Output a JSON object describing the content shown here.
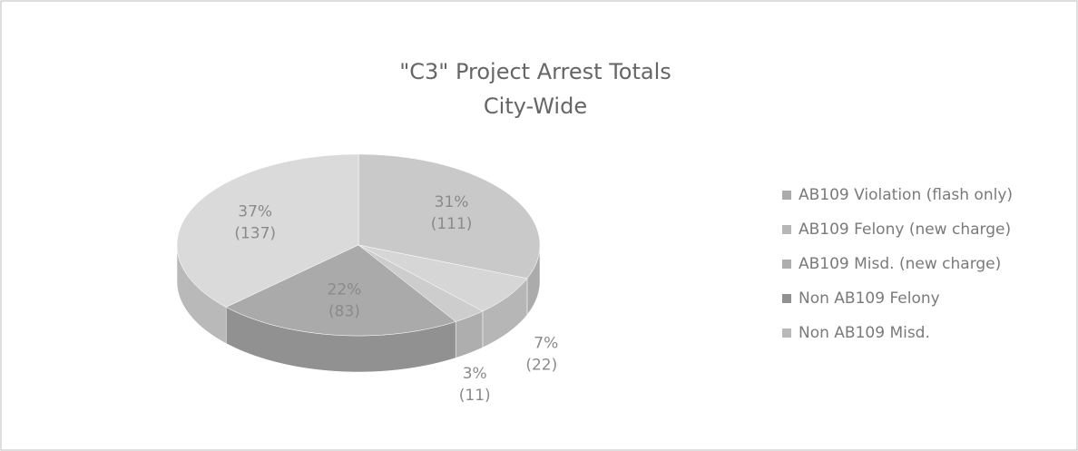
{
  "chart_data": {
    "type": "pie3d",
    "title": "\"C3\" Project Arrest Totals",
    "subtitle": "City-Wide",
    "categories": [
      "AB109 Violation (flash only)",
      "AB109 Felony (new charge)",
      "AB109 Misd. (new charge)",
      "Non AB109 Felony",
      "Non AB109 Misd."
    ],
    "values": [
      31,
      7,
      3,
      22,
      37
    ],
    "value_labels": [
      "31%",
      "7%",
      "3%",
      "22%",
      "37%"
    ],
    "counts": [
      111,
      22,
      11,
      83,
      137
    ],
    "count_labels": [
      "(111)",
      "(22)",
      "(11)",
      "(83)",
      "(137)"
    ],
    "colors": [
      "#c9c9c9",
      "#d6d6d6",
      "#cdcdcd",
      "#aaaaaa",
      "#dadada"
    ],
    "legend": "right"
  }
}
